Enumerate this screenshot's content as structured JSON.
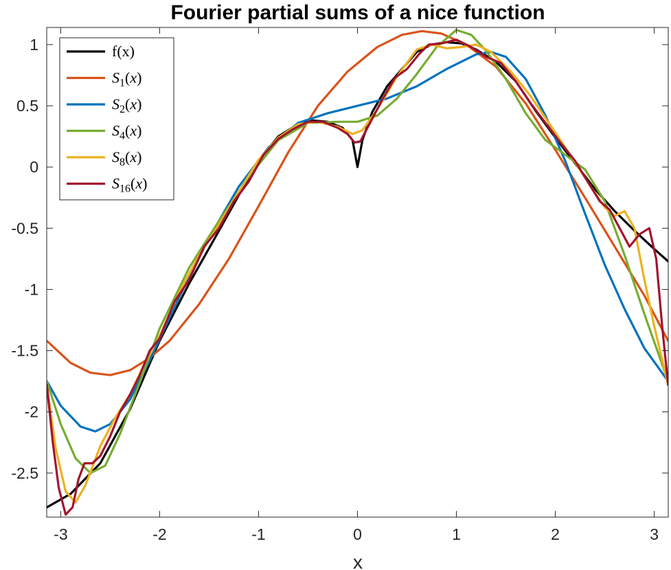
{
  "chart_data": {
    "type": "line",
    "title": "Fourier partial sums of a nice function",
    "xlabel": "x",
    "ylabel": "",
    "xlim": [
      -3.14159,
      3.14159
    ],
    "ylim": [
      -2.86,
      1.14
    ],
    "xticks": [
      -3,
      -2,
      -1,
      0,
      1,
      2,
      3
    ],
    "xtick_labels": [
      "-3",
      "-2",
      "-1",
      "0",
      "1",
      "2",
      "3"
    ],
    "yticks": [
      1,
      0.5,
      0,
      -0.5,
      -1,
      -1.5,
      -2,
      -2.5
    ],
    "ytick_labels": [
      "1",
      "0.5",
      "0",
      "-0.5",
      "-1",
      "-1.5",
      "-2",
      "-2.5"
    ],
    "grid": false,
    "legend_position": "top-left",
    "series": [
      {
        "name": "f(x)",
        "legend": {
          "main": "f(x)",
          "sub": "",
          "arg": ""
        },
        "color": "#000000",
        "points": [
          [
            -3.14,
            -2.78
          ],
          [
            -2.9,
            -2.67
          ],
          [
            -2.6,
            -2.42
          ],
          [
            -2.3,
            -1.98
          ],
          [
            -2.0,
            -1.42
          ],
          [
            -1.7,
            -0.95
          ],
          [
            -1.4,
            -0.52
          ],
          [
            -1.2,
            -0.23
          ],
          [
            -1.0,
            0.05
          ],
          [
            -0.8,
            0.25
          ],
          [
            -0.6,
            0.35
          ],
          [
            -0.45,
            0.38
          ],
          [
            -0.3,
            0.37
          ],
          [
            -0.15,
            0.32
          ],
          [
            -0.05,
            0.22
          ],
          [
            0.0,
            0.0
          ],
          [
            0.05,
            0.22
          ],
          [
            0.15,
            0.45
          ],
          [
            0.3,
            0.66
          ],
          [
            0.45,
            0.8
          ],
          [
            0.6,
            0.94
          ],
          [
            0.75,
            1.0
          ],
          [
            0.9,
            1.02
          ],
          [
            1.05,
            1.01
          ],
          [
            1.2,
            0.96
          ],
          [
            1.4,
            0.86
          ],
          [
            1.6,
            0.7
          ],
          [
            1.8,
            0.46
          ],
          [
            2.0,
            0.24
          ],
          [
            2.2,
            0.03
          ],
          [
            2.4,
            -0.18
          ],
          [
            2.6,
            -0.36
          ],
          [
            2.8,
            -0.52
          ],
          [
            3.0,
            -0.67
          ],
          [
            3.14,
            -0.77
          ]
        ]
      },
      {
        "name": "S1(x)",
        "legend": {
          "main": "S",
          "sub": "1",
          "arg": "(x)"
        },
        "color": "#D95319",
        "points": [
          [
            -3.14,
            -1.42
          ],
          [
            -2.9,
            -1.6
          ],
          [
            -2.7,
            -1.68
          ],
          [
            -2.5,
            -1.7
          ],
          [
            -2.3,
            -1.66
          ],
          [
            -2.1,
            -1.56
          ],
          [
            -1.9,
            -1.42
          ],
          [
            -1.6,
            -1.12
          ],
          [
            -1.3,
            -0.75
          ],
          [
            -1.0,
            -0.32
          ],
          [
            -0.7,
            0.12
          ],
          [
            -0.4,
            0.5
          ],
          [
            -0.1,
            0.78
          ],
          [
            0.2,
            0.98
          ],
          [
            0.45,
            1.08
          ],
          [
            0.65,
            1.11
          ],
          [
            0.85,
            1.09
          ],
          [
            1.1,
            1.0
          ],
          [
            1.4,
            0.82
          ],
          [
            1.7,
            0.52
          ],
          [
            2.0,
            0.14
          ],
          [
            2.3,
            -0.25
          ],
          [
            2.6,
            -0.65
          ],
          [
            2.9,
            -1.05
          ],
          [
            3.14,
            -1.42
          ]
        ]
      },
      {
        "name": "S2(x)",
        "legend": {
          "main": "S",
          "sub": "2",
          "arg": "(x)"
        },
        "color": "#0072BD",
        "points": [
          [
            -3.14,
            -1.75
          ],
          [
            -3.0,
            -1.95
          ],
          [
            -2.8,
            -2.12
          ],
          [
            -2.65,
            -2.16
          ],
          [
            -2.5,
            -2.1
          ],
          [
            -2.3,
            -1.9
          ],
          [
            -2.1,
            -1.58
          ],
          [
            -1.8,
            -1.06
          ],
          [
            -1.5,
            -0.58
          ],
          [
            -1.2,
            -0.16
          ],
          [
            -0.9,
            0.16
          ],
          [
            -0.6,
            0.36
          ],
          [
            -0.3,
            0.44
          ],
          [
            0.0,
            0.5
          ],
          [
            0.3,
            0.56
          ],
          [
            0.6,
            0.66
          ],
          [
            0.9,
            0.8
          ],
          [
            1.2,
            0.92
          ],
          [
            1.35,
            0.94
          ],
          [
            1.5,
            0.9
          ],
          [
            1.7,
            0.72
          ],
          [
            1.9,
            0.42
          ],
          [
            2.1,
            0.05
          ],
          [
            2.3,
            -0.38
          ],
          [
            2.5,
            -0.8
          ],
          [
            2.7,
            -1.16
          ],
          [
            2.9,
            -1.48
          ],
          [
            3.14,
            -1.75
          ]
        ]
      },
      {
        "name": "S4(x)",
        "legend": {
          "main": "S",
          "sub": "4",
          "arg": "(x)"
        },
        "color": "#77AC30",
        "points": [
          [
            -3.14,
            -1.75
          ],
          [
            -3.0,
            -2.1
          ],
          [
            -2.85,
            -2.38
          ],
          [
            -2.7,
            -2.5
          ],
          [
            -2.55,
            -2.44
          ],
          [
            -2.4,
            -2.18
          ],
          [
            -2.2,
            -1.76
          ],
          [
            -2.0,
            -1.32
          ],
          [
            -1.7,
            -0.82
          ],
          [
            -1.4,
            -0.44
          ],
          [
            -1.1,
            -0.08
          ],
          [
            -0.8,
            0.22
          ],
          [
            -0.5,
            0.36
          ],
          [
            -0.2,
            0.37
          ],
          [
            0.0,
            0.37
          ],
          [
            0.2,
            0.42
          ],
          [
            0.4,
            0.56
          ],
          [
            0.6,
            0.76
          ],
          [
            0.8,
            0.98
          ],
          [
            1.0,
            1.12
          ],
          [
            1.15,
            1.08
          ],
          [
            1.3,
            0.95
          ],
          [
            1.5,
            0.72
          ],
          [
            1.7,
            0.44
          ],
          [
            1.9,
            0.22
          ],
          [
            2.1,
            0.1
          ],
          [
            2.3,
            -0.02
          ],
          [
            2.5,
            -0.28
          ],
          [
            2.7,
            -0.72
          ],
          [
            2.9,
            -1.2
          ],
          [
            3.14,
            -1.75
          ]
        ]
      },
      {
        "name": "S8(x)",
        "legend": {
          "main": "S",
          "sub": "8",
          "arg": "(x)"
        },
        "color": "#EDB120",
        "points": [
          [
            -3.14,
            -1.78
          ],
          [
            -3.05,
            -2.3
          ],
          [
            -2.95,
            -2.65
          ],
          [
            -2.85,
            -2.74
          ],
          [
            -2.75,
            -2.6
          ],
          [
            -2.6,
            -2.28
          ],
          [
            -2.45,
            -2.05
          ],
          [
            -2.3,
            -1.86
          ],
          [
            -2.15,
            -1.6
          ],
          [
            -2.0,
            -1.38
          ],
          [
            -1.8,
            -1.02
          ],
          [
            -1.6,
            -0.72
          ],
          [
            -1.4,
            -0.47
          ],
          [
            -1.2,
            -0.2
          ],
          [
            -1.0,
            0.06
          ],
          [
            -0.8,
            0.24
          ],
          [
            -0.6,
            0.35
          ],
          [
            -0.4,
            0.37
          ],
          [
            -0.2,
            0.33
          ],
          [
            -0.05,
            0.27
          ],
          [
            0.05,
            0.3
          ],
          [
            0.2,
            0.47
          ],
          [
            0.4,
            0.74
          ],
          [
            0.6,
            0.96
          ],
          [
            0.75,
            1.0
          ],
          [
            0.9,
            0.97
          ],
          [
            1.05,
            0.98
          ],
          [
            1.2,
            1.0
          ],
          [
            1.35,
            0.94
          ],
          [
            1.55,
            0.78
          ],
          [
            1.75,
            0.58
          ],
          [
            1.95,
            0.34
          ],
          [
            2.15,
            0.1
          ],
          [
            2.35,
            -0.15
          ],
          [
            2.5,
            -0.33
          ],
          [
            2.6,
            -0.4
          ],
          [
            2.7,
            -0.36
          ],
          [
            2.8,
            -0.5
          ],
          [
            2.9,
            -0.92
          ],
          [
            3.0,
            -1.3
          ],
          [
            3.14,
            -1.78
          ]
        ]
      },
      {
        "name": "S16(x)",
        "legend": {
          "main": "S",
          "sub": "16",
          "arg": "(x)"
        },
        "color": "#A2142F",
        "points": [
          [
            -3.14,
            -1.78
          ],
          [
            -3.08,
            -2.25
          ],
          [
            -3.02,
            -2.62
          ],
          [
            -2.95,
            -2.84
          ],
          [
            -2.88,
            -2.78
          ],
          [
            -2.82,
            -2.55
          ],
          [
            -2.76,
            -2.42
          ],
          [
            -2.68,
            -2.42
          ],
          [
            -2.6,
            -2.36
          ],
          [
            -2.5,
            -2.2
          ],
          [
            -2.4,
            -2.0
          ],
          [
            -2.3,
            -1.86
          ],
          [
            -2.2,
            -1.7
          ],
          [
            -2.1,
            -1.5
          ],
          [
            -2.0,
            -1.4
          ],
          [
            -1.85,
            -1.1
          ],
          [
            -1.7,
            -0.92
          ],
          [
            -1.55,
            -0.65
          ],
          [
            -1.4,
            -0.5
          ],
          [
            -1.25,
            -0.28
          ],
          [
            -1.1,
            -0.12
          ],
          [
            -0.95,
            0.1
          ],
          [
            -0.8,
            0.23
          ],
          [
            -0.65,
            0.31
          ],
          [
            -0.5,
            0.37
          ],
          [
            -0.35,
            0.37
          ],
          [
            -0.2,
            0.32
          ],
          [
            -0.1,
            0.27
          ],
          [
            -0.03,
            0.2
          ],
          [
            0.03,
            0.21
          ],
          [
            0.12,
            0.35
          ],
          [
            0.25,
            0.55
          ],
          [
            0.38,
            0.73
          ],
          [
            0.5,
            0.8
          ],
          [
            0.62,
            0.92
          ],
          [
            0.72,
            1.0
          ],
          [
            0.85,
            1.01
          ],
          [
            1.0,
            1.04
          ],
          [
            1.15,
            0.98
          ],
          [
            1.3,
            0.9
          ],
          [
            1.45,
            0.85
          ],
          [
            1.6,
            0.7
          ],
          [
            1.75,
            0.52
          ],
          [
            1.9,
            0.36
          ],
          [
            2.05,
            0.2
          ],
          [
            2.2,
            0.05
          ],
          [
            2.35,
            -0.15
          ],
          [
            2.45,
            -0.28
          ],
          [
            2.55,
            -0.35
          ],
          [
            2.65,
            -0.5
          ],
          [
            2.75,
            -0.65
          ],
          [
            2.85,
            -0.55
          ],
          [
            2.95,
            -0.5
          ],
          [
            3.02,
            -0.75
          ],
          [
            3.08,
            -1.3
          ],
          [
            3.14,
            -1.78
          ]
        ]
      }
    ]
  }
}
